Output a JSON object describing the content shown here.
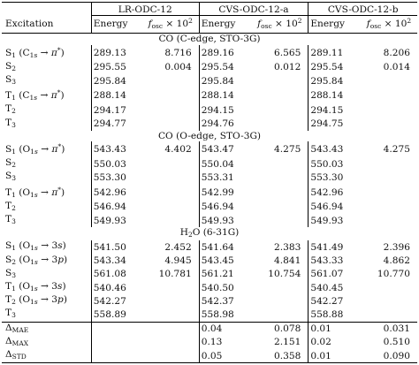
{
  "table": {
    "groups": [
      "LR-ODC-12",
      "CVS-ODC-12-a",
      "CVS-ODC-12-b"
    ],
    "row_header": "Excitation",
    "col_energy": "Energy",
    "col_fosc": "f_osc × 10^2",
    "sections": [
      {
        "title": "CO (C-edge, STO-3G)",
        "rows": [
          {
            "label": "S1 (C1s → π*)",
            "lr_e": "289.13",
            "lr_f": "8.716",
            "a_e": "289.16",
            "a_f": "6.565",
            "b_e": "289.11",
            "b_f": "8.206"
          },
          {
            "label": "S2",
            "lr_e": "295.55",
            "lr_f": "0.004",
            "a_e": "295.54",
            "a_f": "0.012",
            "b_e": "295.54",
            "b_f": "0.014"
          },
          {
            "label": "S3",
            "lr_e": "295.84",
            "lr_f": "",
            "a_e": "295.84",
            "a_f": "",
            "b_e": "295.84",
            "b_f": ""
          },
          {
            "label": "T1 (C1s → π*)",
            "lr_e": "288.14",
            "lr_f": "",
            "a_e": "288.14",
            "a_f": "",
            "b_e": "288.14",
            "b_f": ""
          },
          {
            "label": "T2",
            "lr_e": "294.17",
            "lr_f": "",
            "a_e": "294.15",
            "a_f": "",
            "b_e": "294.15",
            "b_f": ""
          },
          {
            "label": "T3",
            "lr_e": "294.77",
            "lr_f": "",
            "a_e": "294.76",
            "a_f": "",
            "b_e": "294.75",
            "b_f": ""
          }
        ]
      },
      {
        "title": "CO (O-edge, STO-3G)",
        "rows": [
          {
            "label": "S1 (O1s → π*)",
            "lr_e": "543.43",
            "lr_f": "4.402",
            "a_e": "543.47",
            "a_f": "4.275",
            "b_e": "543.43",
            "b_f": "4.275"
          },
          {
            "label": "S2",
            "lr_e": "550.03",
            "lr_f": "",
            "a_e": "550.04",
            "a_f": "",
            "b_e": "550.03",
            "b_f": ""
          },
          {
            "label": "S3",
            "lr_e": "553.30",
            "lr_f": "",
            "a_e": "553.31",
            "a_f": "",
            "b_e": "553.30",
            "b_f": ""
          },
          {
            "label": "T1 (O1s → π*)",
            "lr_e": "542.96",
            "lr_f": "",
            "a_e": "542.99",
            "a_f": "",
            "b_e": "542.96",
            "b_f": ""
          },
          {
            "label": "T2",
            "lr_e": "546.94",
            "lr_f": "",
            "a_e": "546.94",
            "a_f": "",
            "b_e": "546.94",
            "b_f": ""
          },
          {
            "label": "T3",
            "lr_e": "549.93",
            "lr_f": "",
            "a_e": "549.93",
            "a_f": "",
            "b_e": "549.93",
            "b_f": ""
          }
        ]
      },
      {
        "title": "H2O (6-31G)",
        "rows": [
          {
            "label": "S1 (O1s → 3s)",
            "lr_e": "541.50",
            "lr_f": "2.452",
            "a_e": "541.64",
            "a_f": "2.383",
            "b_e": "541.49",
            "b_f": "2.396"
          },
          {
            "label": "S2 (O1s → 3p)",
            "lr_e": "543.34",
            "lr_f": "4.945",
            "a_e": "543.45",
            "a_f": "4.841",
            "b_e": "543.33",
            "b_f": "4.862"
          },
          {
            "label": "S3",
            "lr_e": "561.08",
            "lr_f": "10.781",
            "a_e": "561.21",
            "a_f": "10.754",
            "b_e": "561.07",
            "b_f": "10.770"
          },
          {
            "label": "T1 (O1s → 3s)",
            "lr_e": "540.46",
            "lr_f": "",
            "a_e": "540.50",
            "a_f": "",
            "b_e": "540.45",
            "b_f": ""
          },
          {
            "label": "T2 (O1s → 3p)",
            "lr_e": "542.27",
            "lr_f": "",
            "a_e": "542.37",
            "a_f": "",
            "b_e": "542.27",
            "b_f": ""
          },
          {
            "label": "T3",
            "lr_e": "558.89",
            "lr_f": "",
            "a_e": "558.98",
            "a_f": "",
            "b_e": "558.88",
            "b_f": ""
          }
        ]
      }
    ],
    "stats": [
      {
        "label": "ΔMAE",
        "lr_e": "",
        "lr_f": "",
        "a_e": "0.04",
        "a_f": "0.078",
        "b_e": "0.01",
        "b_f": "0.031"
      },
      {
        "label": "ΔMAX",
        "lr_e": "",
        "lr_f": "",
        "a_e": "0.13",
        "a_f": "2.151",
        "b_e": "0.02",
        "b_f": "0.510"
      },
      {
        "label": "ΔSTD",
        "lr_e": "",
        "lr_f": "",
        "a_e": "0.05",
        "a_f": "0.358",
        "b_e": "0.01",
        "b_f": "0.090"
      }
    ]
  }
}
